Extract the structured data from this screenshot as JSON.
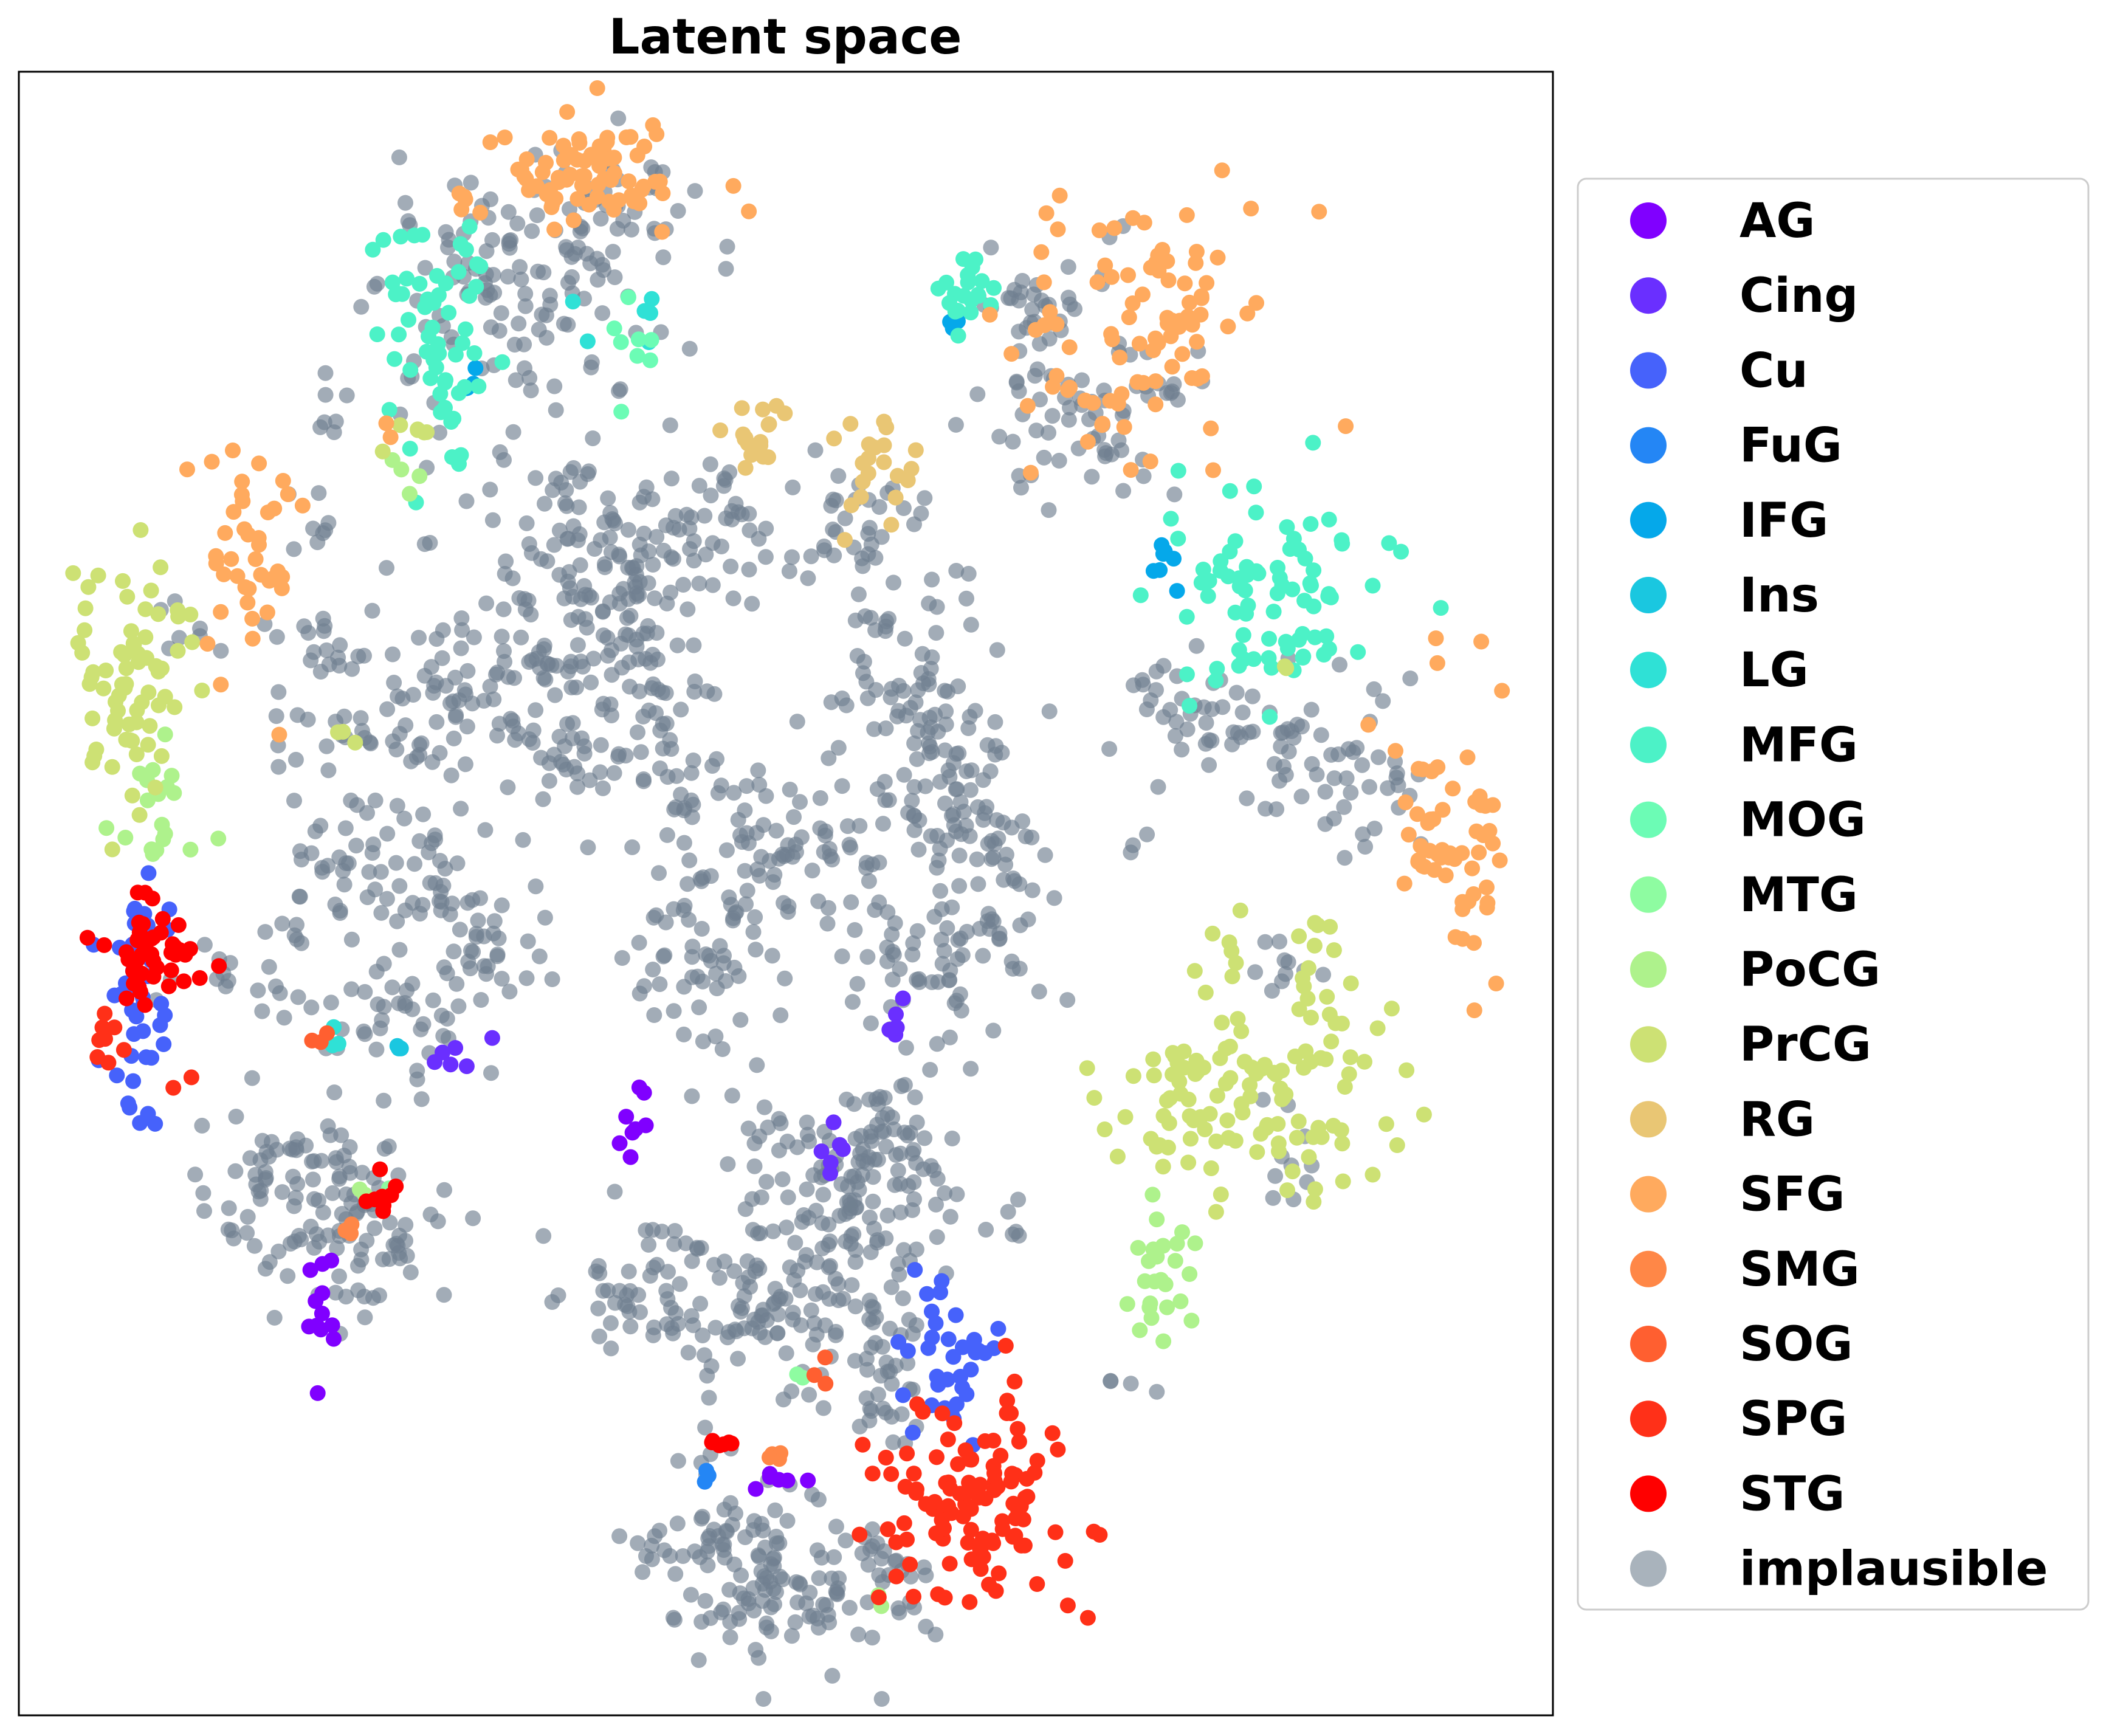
{
  "chart_data": {
    "type": "scatter",
    "title": "Latent space",
    "xlabel": "",
    "ylabel": "",
    "xticks": false,
    "yticks": false,
    "grid": false,
    "xlim": [
      0,
      100
    ],
    "ylim": [
      0,
      100
    ],
    "legend_position": "outside-right",
    "series": [
      {
        "name": "AG",
        "color": "#8000ff",
        "clusters": [
          [
            19.5,
            25.5,
            0.6,
            2.2,
            12
          ],
          [
            40.2,
            36.0,
            0.5,
            1.2,
            8
          ],
          [
            49.8,
            14.4,
            0.8,
            0.5,
            6
          ]
        ]
      },
      {
        "name": "Cing",
        "color": "#6a2fff",
        "clusters": [
          [
            28.2,
            40.0,
            0.8,
            1.2,
            6
          ],
          [
            57.2,
            42.0,
            0.4,
            1.2,
            6
          ],
          [
            53.6,
            34.2,
            0.5,
            0.9,
            6
          ]
        ]
      },
      {
        "name": "Cu",
        "color": "#4662fb",
        "clusters": [
          [
            7.5,
            43.0,
            1.2,
            3.6,
            40
          ],
          [
            61.0,
            21.5,
            1.5,
            2.5,
            35
          ]
        ]
      },
      {
        "name": "FuG",
        "color": "#2486f5",
        "clusters": [
          [
            44.8,
            14.2,
            0.3,
            0.4,
            3
          ]
        ]
      },
      {
        "name": "IFG",
        "color": "#05a8ea",
        "clusters": [
          [
            29.5,
            81.5,
            0.4,
            0.6,
            4
          ],
          [
            60.5,
            84.5,
            0.4,
            0.3,
            3
          ],
          [
            74.5,
            70.5,
            0.6,
            1.1,
            8
          ]
        ]
      },
      {
        "name": "Ins",
        "color": "#1ac7e0",
        "clusters": [
          [
            25.0,
            40.5,
            0.4,
            0.4,
            3
          ]
        ]
      },
      {
        "name": "LG",
        "color": "#2fe1d6",
        "clusters": [
          [
            39.5,
            85.5,
            1.5,
            1.5,
            6
          ],
          [
            20.5,
            41.5,
            0.4,
            0.4,
            3
          ]
        ]
      },
      {
        "name": "MFG",
        "color": "#4cf2c7",
        "clusters": [
          [
            27.5,
            84.0,
            2.0,
            4.0,
            60
          ],
          [
            61.5,
            86.5,
            1.5,
            1.0,
            20
          ],
          [
            82.0,
            67.5,
            3.5,
            3.5,
            80
          ]
        ]
      },
      {
        "name": "MOG",
        "color": "#6cfcb5",
        "clusters": [
          [
            40.0,
            84.0,
            1.0,
            2.0,
            8
          ]
        ]
      },
      {
        "name": "MTG",
        "color": "#8efca1",
        "clusters": [
          [
            24.0,
            32.0,
            0.4,
            0.4,
            2
          ],
          [
            50.5,
            20.5,
            0.5,
            0.4,
            2
          ]
        ]
      },
      {
        "name": "PoCG",
        "color": "#aef28c",
        "clusters": [
          [
            9.5,
            55.0,
            1.6,
            1.6,
            20
          ],
          [
            74.0,
            26.5,
            1.5,
            2.0,
            25
          ],
          [
            25.5,
            75.5,
            0.6,
            0.8,
            4
          ],
          [
            56.0,
            7.0,
            0.5,
            0.5,
            2
          ],
          [
            22.5,
            32.0,
            0.4,
            0.4,
            2
          ]
        ]
      },
      {
        "name": "PrCG",
        "color": "#cde174",
        "clusters": [
          [
            7.5,
            63.5,
            2.2,
            3.5,
            70
          ],
          [
            80.5,
            37.5,
            5.0,
            3.0,
            110
          ],
          [
            84.5,
            43.5,
            0.8,
            3.0,
            18
          ],
          [
            79.0,
            47.0,
            0.6,
            1.2,
            6
          ],
          [
            25.5,
            77.5,
            1.0,
            1.0,
            6
          ],
          [
            21.2,
            59.5,
            0.5,
            0.4,
            3
          ],
          [
            82.5,
            64.0,
            0.3,
            0.4,
            2
          ]
        ]
      },
      {
        "name": "RG",
        "color": "#e9c674",
        "clusters": [
          [
            47.8,
            78.0,
            1.2,
            1.0,
            18
          ],
          [
            55.8,
            76.0,
            1.2,
            1.8,
            22
          ]
        ]
      },
      {
        "name": "SFG",
        "color": "#ffaa5e",
        "clusters": [
          [
            36.5,
            93.5,
            4.0,
            1.5,
            80
          ],
          [
            73.0,
            85.0,
            4.0,
            3.5,
            90
          ],
          [
            93.5,
            54.0,
            1.8,
            4.5,
            60
          ],
          [
            15.0,
            71.5,
            1.5,
            4.5,
            40
          ],
          [
            24.5,
            78.5,
            0.4,
            0.4,
            2
          ],
          [
            70.5,
            79.0,
            0.4,
            0.4,
            2
          ]
        ]
      },
      {
        "name": "SMG",
        "color": "#ff8747",
        "clusters": [
          [
            48.5,
            15.5,
            0.6,
            0.4,
            4
          ],
          [
            22.0,
            30.0,
            0.5,
            0.5,
            3
          ]
        ]
      },
      {
        "name": "SOG",
        "color": "#ff5f30",
        "clusters": [
          [
            52.5,
            20.5,
            0.4,
            0.4,
            3
          ],
          [
            19.0,
            41.0,
            0.5,
            0.3,
            3
          ]
        ]
      },
      {
        "name": "SPG",
        "color": "#ff3018",
        "clusters": [
          [
            62.0,
            12.5,
            3.0,
            3.5,
            110
          ],
          [
            6.0,
            41.0,
            0.6,
            0.8,
            8
          ],
          [
            11.0,
            38.5,
            0.4,
            0.4,
            2
          ],
          [
            64.5,
            18.5,
            0.4,
            0.6,
            3
          ]
        ]
      },
      {
        "name": "STG",
        "color": "#ff0000",
        "clusters": [
          [
            8.5,
            46.5,
            2.0,
            1.5,
            45
          ],
          [
            24.0,
            32.0,
            0.8,
            0.6,
            8
          ],
          [
            45.8,
            16.0,
            0.5,
            0.8,
            6
          ]
        ]
      },
      {
        "name": "implausible",
        "color": "#708090",
        "alpha": 0.65,
        "clusters": [
          [
            36.0,
            91.0,
            5.0,
            2.5,
            50
          ],
          [
            32.0,
            84.0,
            4.5,
            5.5,
            90
          ],
          [
            38.0,
            88.0,
            2.0,
            2.0,
            20
          ],
          [
            20.0,
            79.0,
            0.5,
            1.0,
            6
          ],
          [
            20.0,
            65.0,
            1.0,
            0.8,
            10
          ],
          [
            22.0,
            60.0,
            3.0,
            2.5,
            40
          ],
          [
            30.0,
            62.0,
            3.5,
            3.0,
            70
          ],
          [
            36.0,
            66.0,
            3.0,
            4.5,
            90
          ],
          [
            42.0,
            70.0,
            4.0,
            2.5,
            80
          ],
          [
            47.0,
            74.0,
            2.0,
            1.5,
            15
          ],
          [
            55.0,
            73.0,
            2.0,
            1.5,
            25
          ],
          [
            40.0,
            66.0,
            1.5,
            2.0,
            20
          ],
          [
            42.0,
            58.0,
            4.0,
            3.5,
            60
          ],
          [
            49.0,
            53.0,
            2.0,
            2.0,
            30
          ],
          [
            46.0,
            48.0,
            3.0,
            3.0,
            50
          ],
          [
            43.0,
            45.0,
            1.5,
            2.0,
            20
          ],
          [
            54.0,
            52.0,
            1.5,
            2.0,
            20
          ],
          [
            58.0,
            61.0,
            2.5,
            3.5,
            70
          ],
          [
            61.0,
            56.0,
            2.5,
            3.0,
            50
          ],
          [
            63.5,
            50.0,
            2.0,
            4.0,
            50
          ],
          [
            60.0,
            45.0,
            2.0,
            2.5,
            40
          ],
          [
            25.0,
            52.0,
            4.0,
            2.5,
            70
          ],
          [
            30.5,
            47.0,
            2.0,
            1.5,
            25
          ],
          [
            25.5,
            43.0,
            3.0,
            2.0,
            40
          ],
          [
            13.0,
            45.0,
            2.0,
            1.0,
            15
          ],
          [
            17.5,
            32.0,
            3.0,
            3.0,
            70
          ],
          [
            22.5,
            30.0,
            2.5,
            3.5,
            60
          ],
          [
            51.0,
            32.0,
            3.0,
            3.5,
            70
          ],
          [
            56.0,
            33.0,
            2.5,
            2.5,
            50
          ],
          [
            57.5,
            36.0,
            2.0,
            2.0,
            25
          ],
          [
            41.0,
            26.0,
            3.0,
            2.5,
            60
          ],
          [
            48.0,
            24.0,
            1.5,
            2.5,
            30
          ],
          [
            53.0,
            25.0,
            3.0,
            3.5,
            60
          ],
          [
            56.5,
            20.0,
            1.5,
            3.0,
            30
          ],
          [
            46.5,
            11.0,
            2.0,
            2.0,
            40
          ],
          [
            49.5,
            7.5,
            3.5,
            2.0,
            80
          ],
          [
            57.0,
            8.0,
            2.0,
            2.0,
            25
          ],
          [
            42.0,
            10.0,
            1.5,
            0.8,
            10
          ],
          [
            45.0,
            16.0,
            1.0,
            1.0,
            6
          ],
          [
            66.5,
            85.5,
            3.5,
            2.5,
            40
          ],
          [
            69.5,
            79.0,
            3.0,
            2.0,
            50
          ],
          [
            76.5,
            81.0,
            1.5,
            1.0,
            10
          ],
          [
            78.5,
            60.0,
            2.5,
            2.0,
            40
          ],
          [
            84.5,
            58.5,
            2.5,
            2.5,
            40
          ],
          [
            89.0,
            55.5,
            1.0,
            1.5,
            10
          ],
          [
            82.0,
            46.0,
            1.5,
            1.0,
            10
          ],
          [
            83.0,
            34.5,
            1.5,
            1.5,
            10
          ],
          [
            73.5,
            63.0,
            1.0,
            1.0,
            6
          ],
          [
            72.5,
            53.0,
            0.5,
            0.5,
            3
          ],
          [
            10.5,
            66.0,
            1.0,
            1.0,
            6
          ],
          [
            20.0,
            72.0,
            1.0,
            1.5,
            8
          ],
          [
            37.0,
            75.0,
            1.5,
            1.0,
            8
          ],
          [
            53.0,
            70.0,
            1.0,
            1.0,
            6
          ],
          [
            60.0,
            68.0,
            1.0,
            1.0,
            6
          ],
          [
            18.0,
            48.0,
            1.0,
            1.0,
            6
          ],
          [
            72.5,
            20.0,
            0.8,
            0.8,
            4
          ],
          [
            64.5,
            30.0,
            1.0,
            1.0,
            6
          ]
        ]
      }
    ]
  }
}
